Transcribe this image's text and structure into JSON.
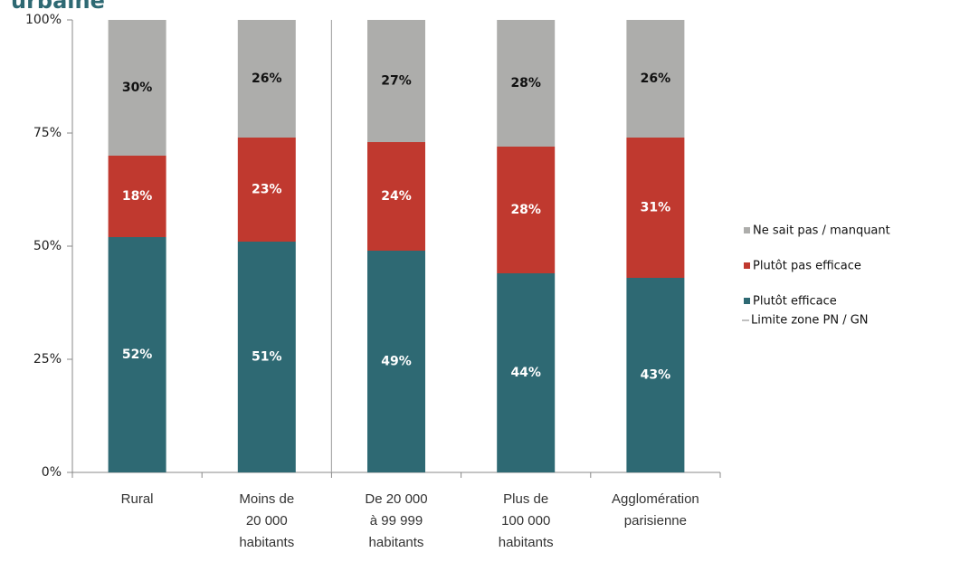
{
  "chart_data": {
    "type": "stacked_bar",
    "title": "urbaine",
    "categories": [
      [
        "Rural"
      ],
      [
        "Moins de",
        "20 000",
        "habitants"
      ],
      [
        "De 20 000",
        "à 99 999",
        "habitants"
      ],
      [
        "Plus de",
        "100 000",
        "habitants"
      ],
      [
        "Agglomération",
        "parisienne"
      ]
    ],
    "series": [
      {
        "name": "Plutôt efficace",
        "color": "#2e6973",
        "values": [
          52,
          51,
          49,
          44,
          43
        ],
        "value_labels": [
          "52%",
          "51%",
          "49%",
          "44%",
          "43%"
        ]
      },
      {
        "name": "Plutôt pas efficace",
        "color": "#c0392f",
        "values": [
          18,
          23,
          24,
          28,
          31
        ],
        "value_labels": [
          "18%",
          "23%",
          "24%",
          "28%",
          "31%"
        ]
      },
      {
        "name": "Ne sait pas / manquant",
        "color": "#adadab",
        "values": [
          30,
          26,
          27,
          28,
          26
        ],
        "value_labels": [
          "30%",
          "26%",
          "27%",
          "28%",
          "26%"
        ]
      }
    ],
    "divider": {
      "name": "Limite zone PN / GN",
      "after_category": 1,
      "color": "#aaaaaa"
    },
    "ylim": [
      0,
      100
    ],
    "yticks": [
      {
        "value": 0,
        "label": "0%"
      },
      {
        "value": 25,
        "label": "25%"
      },
      {
        "value": 50,
        "label": "50%"
      },
      {
        "value": 75,
        "label": "75%"
      },
      {
        "value": 100,
        "label": "100%"
      }
    ],
    "legend": "right"
  }
}
